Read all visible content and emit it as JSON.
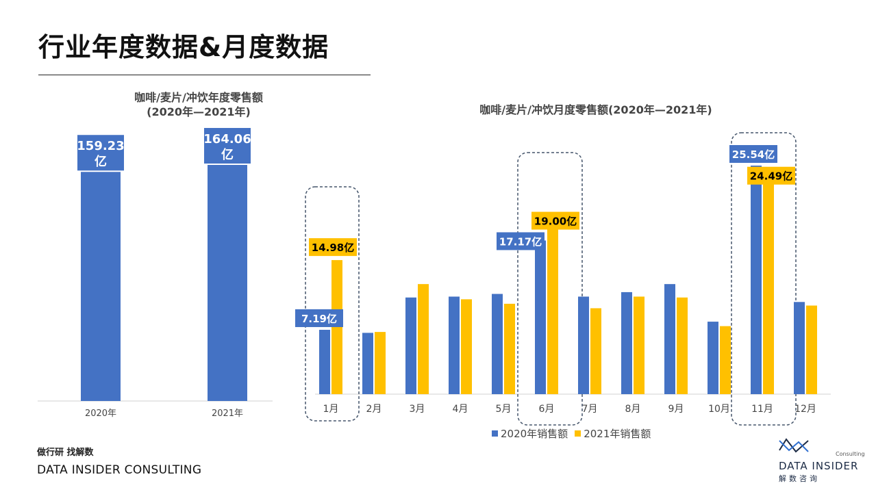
{
  "page": {
    "title": "行业年度数据&月度数据",
    "footer_cn": "做行研 找解数",
    "footer_en": "DATA INSIDER CONSULTING"
  },
  "logo": {
    "consulting": "Consulting",
    "brand": "DATA INSIDER",
    "brand_cn": "解数咨询"
  },
  "colors": {
    "blue": "#4472C4",
    "yellow": "#FFC000",
    "dash": "#44546A"
  },
  "chart_data": [
    {
      "type": "bar",
      "title": "咖啡/麦片/冲饮年度零售额",
      "subtitle": "(2020年—2021年)",
      "categories": [
        "2020年",
        "2021年"
      ],
      "values": [
        159.23,
        164.06
      ],
      "data_labels": [
        "159.23亿",
        "164.06亿"
      ],
      "color": "#4472C4",
      "ylim": [
        0,
        170
      ]
    },
    {
      "type": "bar",
      "title": "咖啡/麦片/冲饮月度零售额(2020年—2021年)",
      "categories": [
        "1月",
        "2月",
        "3月",
        "4月",
        "5月",
        "6月",
        "7月",
        "8月",
        "9月",
        "10月",
        "11月",
        "12月"
      ],
      "series": [
        {
          "name": "2020年销售额",
          "color": "#4472C4",
          "values": [
            7.19,
            6.85,
            10.8,
            10.9,
            11.2,
            17.17,
            10.9,
            11.4,
            12.3,
            8.1,
            25.54,
            10.3
          ]
        },
        {
          "name": "2021年销售额",
          "color": "#FFC000",
          "values": [
            14.98,
            6.95,
            12.3,
            10.6,
            10.1,
            19.0,
            9.6,
            10.9,
            10.8,
            7.6,
            24.49,
            9.9
          ]
        }
      ],
      "data_labels": [
        {
          "month": "1月",
          "series": "2020年销售额",
          "text": "7.19亿"
        },
        {
          "month": "1月",
          "series": "2021年销售额",
          "text": "14.98亿"
        },
        {
          "month": "6月",
          "series": "2020年销售额",
          "text": "17.17亿"
        },
        {
          "month": "6月",
          "series": "2021年销售额",
          "text": "19.00亿"
        },
        {
          "month": "11月",
          "series": "2020年销售额",
          "text": "25.54亿"
        },
        {
          "month": "11月",
          "series": "2021年销售额",
          "text": "24.49亿"
        }
      ],
      "highlighted_months": [
        "1月",
        "6月",
        "11月"
      ],
      "legend": "bottom",
      "ylim": [
        0,
        26
      ]
    }
  ]
}
